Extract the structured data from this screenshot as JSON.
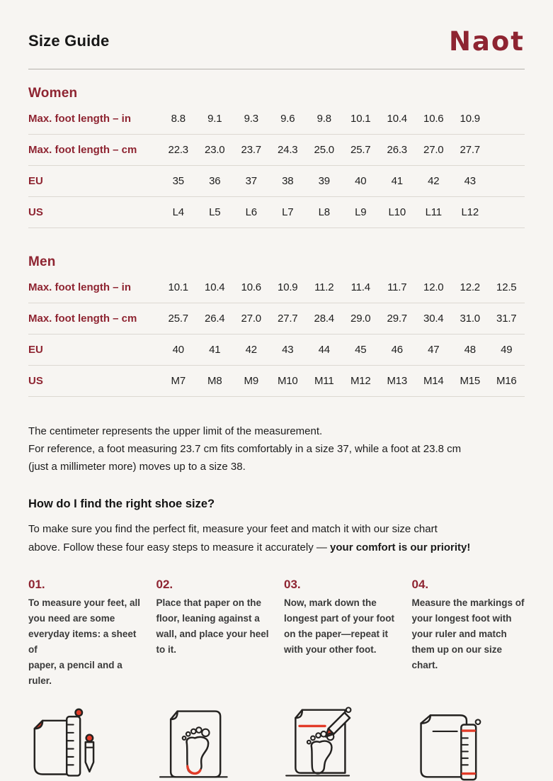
{
  "header": {
    "title": "Size Guide",
    "brand": "Naot"
  },
  "tables": [
    {
      "section": "Women",
      "columns": 10,
      "rows": [
        {
          "label": "Max. foot length – in",
          "values": [
            "8.8",
            "9.1",
            "9.3",
            "9.6",
            "9.8",
            "10.1",
            "10.4",
            "10.6",
            "10.9"
          ]
        },
        {
          "label": "Max. foot length – cm",
          "values": [
            "22.3",
            "23.0",
            "23.7",
            "24.3",
            "25.0",
            "25.7",
            "26.3",
            "27.0",
            "27.7"
          ]
        },
        {
          "label": "EU",
          "values": [
            "35",
            "36",
            "37",
            "38",
            "39",
            "40",
            "41",
            "42",
            "43"
          ]
        },
        {
          "label": "US",
          "values": [
            "L4",
            "L5",
            "L6",
            "L7",
            "L8",
            "L9",
            "L10",
            "L11",
            "L12"
          ]
        }
      ]
    },
    {
      "section": "Men",
      "columns": 10,
      "rows": [
        {
          "label": "Max. foot length – in",
          "values": [
            "10.1",
            "10.4",
            "10.6",
            "10.9",
            "11.2",
            "11.4",
            "11.7",
            "12.0",
            "12.2",
            "12.5"
          ]
        },
        {
          "label": "Max. foot length – cm",
          "values": [
            "25.7",
            "26.4",
            "27.0",
            "27.7",
            "28.4",
            "29.0",
            "29.7",
            "30.4",
            "31.0",
            "31.7"
          ]
        },
        {
          "label": "EU",
          "values": [
            "40",
            "41",
            "42",
            "43",
            "44",
            "45",
            "46",
            "47",
            "48",
            "49"
          ]
        },
        {
          "label": "US",
          "values": [
            "M7",
            "M8",
            "M9",
            "M10",
            "M11",
            "M12",
            "M13",
            "M14",
            "M15",
            "M16"
          ]
        }
      ]
    }
  ],
  "note": {
    "lines": [
      "The centimeter represents the upper limit of the measurement.",
      "For reference, a foot measuring 23.7 cm fits comfortably in a size 37, while a foot at 23.8 cm",
      "(just a millimeter more) moves up to a size 38."
    ]
  },
  "how_to": {
    "heading": "How do I find the right shoe size?",
    "line1": "To make sure you find the perfect fit, measure your feet and match it with our size chart",
    "line2": "above. Follow these four easy steps to measure it accurately — ",
    "line2_bold": "your comfort is our priority!"
  },
  "steps": [
    {
      "number": "01.",
      "icon": "paper-ruler-pencil-icon",
      "lines": [
        "To measure your feet, all",
        "you need are some",
        "everyday items: a sheet of",
        "paper, a pencil and a ruler."
      ]
    },
    {
      "number": "02.",
      "icon": "paper-footprint-heel-icon",
      "lines": [
        "Place that paper on the",
        "floor, leaning against a",
        "wall, and place your heel",
        "to it."
      ]
    },
    {
      "number": "03.",
      "icon": "paper-footprint-pencil-mark-icon",
      "lines": [
        "Now, mark down the",
        "longest part of your foot",
        "on the paper—repeat it",
        "with your other foot."
      ]
    },
    {
      "number": "04.",
      "icon": "paper-ruler-measure-icon",
      "lines": [
        "Measure the markings of",
        "your longest foot with",
        "your ruler and match",
        "them up on our size chart."
      ]
    }
  ],
  "colors": {
    "background": "#f7f5f2",
    "maroon": "#8e2431",
    "icon_red": "#e23b28",
    "text": "#1e1e1e"
  }
}
